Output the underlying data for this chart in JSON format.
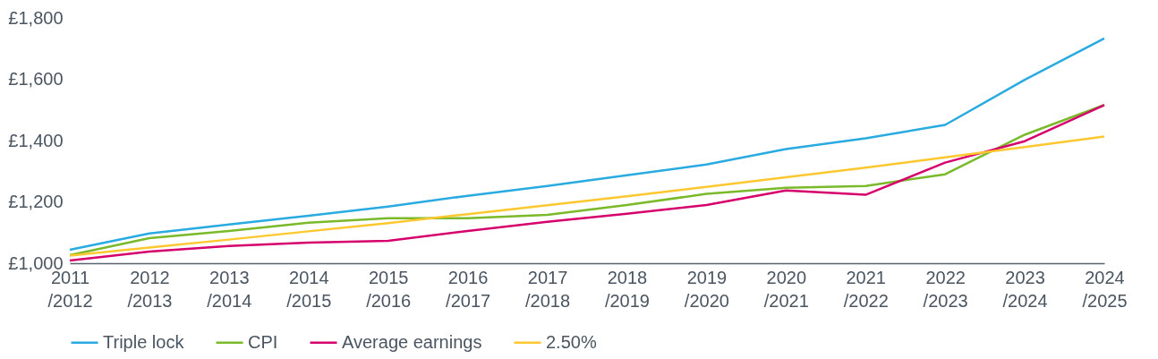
{
  "chart_data": {
    "type": "line",
    "categories": [
      "2011/2012",
      "2012/2013",
      "2013/2014",
      "2014/2015",
      "2015/2016",
      "2016/2017",
      "2017/2018",
      "2018/2019",
      "2019/2020",
      "2020/2021",
      "2021/2022",
      "2022/2023",
      "2023/2024",
      "2024/2025"
    ],
    "series": [
      {
        "name": "Triple lock",
        "color": "#29aae1",
        "values": [
          1044,
          1097,
          1126,
          1155,
          1185,
          1220,
          1252,
          1287,
          1322,
          1372,
          1407,
          1451,
          1598,
          1733
        ]
      },
      {
        "name": "CPI",
        "color": "#7ab929",
        "values": [
          1026,
          1082,
          1105,
          1132,
          1147,
          1147,
          1158,
          1190,
          1226,
          1246,
          1252,
          1290,
          1419,
          1516
        ]
      },
      {
        "name": "Average earnings",
        "color": "#d6006d",
        "values": [
          1009,
          1038,
          1056,
          1067,
          1073,
          1105,
          1135,
          1161,
          1190,
          1237,
          1223,
          1328,
          1398,
          1516
        ]
      },
      {
        "name": "2.50%",
        "color": "#fdc82f",
        "values": [
          1025,
          1051,
          1077,
          1104,
          1131,
          1160,
          1189,
          1218,
          1249,
          1280,
          1312,
          1345,
          1379,
          1413
        ]
      }
    ],
    "ylim": [
      1000,
      1800
    ],
    "yticks": [
      {
        "value": 1000,
        "label": "£1,000"
      },
      {
        "value": 1200,
        "label": "£1,200"
      },
      {
        "value": 1400,
        "label": "£1,400"
      },
      {
        "value": 1600,
        "label": "£1,600"
      },
      {
        "value": 1800,
        "label": "£1,800"
      }
    ],
    "grid": false,
    "legend": "bottom",
    "marker": "none",
    "line_style": "solid"
  }
}
